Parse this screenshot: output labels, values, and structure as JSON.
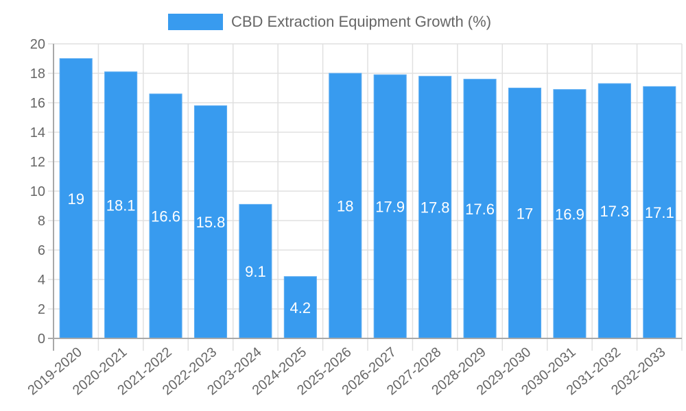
{
  "chart_data": {
    "type": "bar",
    "title": "",
    "xlabel": "",
    "ylabel": "",
    "ylim": [
      0,
      20
    ],
    "ytick_step": 2,
    "yticks": [
      "0",
      "2",
      "4",
      "6",
      "8",
      "10",
      "12",
      "14",
      "16",
      "18",
      "20"
    ],
    "grid": true,
    "legend_position": "top-center",
    "categories": [
      "2019-2020",
      "2020-2021",
      "2021-2022",
      "2022-2023",
      "2023-2024",
      "2024-2025",
      "2025-2026",
      "2026-2027",
      "2027-2028",
      "2028-2029",
      "2029-2030",
      "2030-2031",
      "2031-2032",
      "2032-2033"
    ],
    "series": [
      {
        "name": "CBD Extraction Equipment Growth (%)",
        "color": "#389BEF",
        "border_color": "#5FAEF2",
        "values": [
          19,
          18.1,
          16.6,
          15.8,
          9.1,
          4.2,
          18,
          17.9,
          17.8,
          17.6,
          17,
          16.9,
          17.3,
          17.1
        ],
        "data_labels": [
          "19",
          "18.1",
          "16.6",
          "15.8",
          "9.1",
          "4.2",
          "18",
          "17.9",
          "17.8",
          "17.6",
          "17",
          "16.9",
          "17.3",
          "17.1"
        ]
      }
    ],
    "colors": {
      "grid": "#E0E0E0",
      "axis": "#A8A8A8",
      "tick_text": "#666666",
      "data_label_text": "#FFFFFF"
    }
  }
}
